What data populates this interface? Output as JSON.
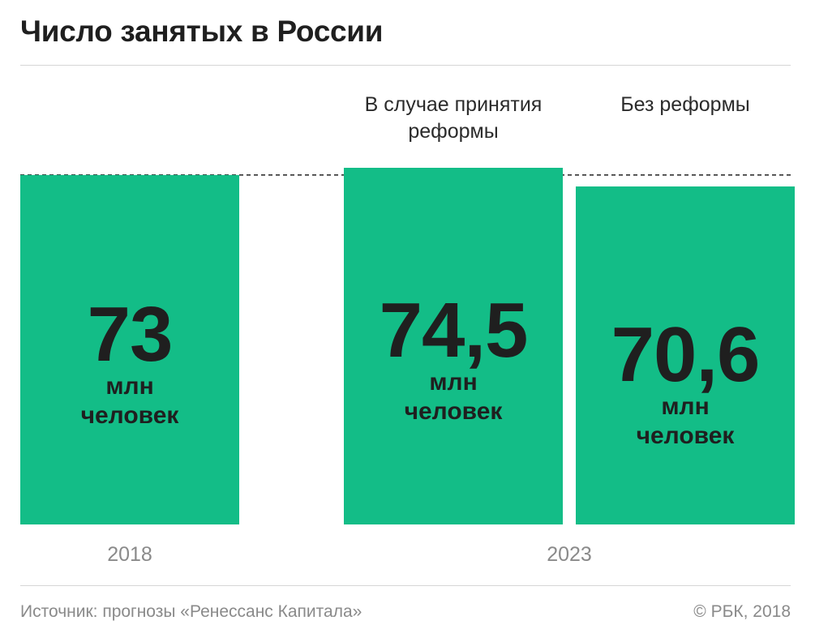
{
  "title": "Число занятых в России",
  "source": "Источник: прогнозы «Ренессанс Капитала»",
  "copyright": "© РБК, 2018",
  "colors": {
    "bar": "#13bd87",
    "reference_line": "#222222",
    "rule": "#d6d6d6"
  },
  "chart_data": {
    "type": "bar",
    "title": "Число занятых в России",
    "unit_line1": "млн",
    "unit_line2": "человек",
    "categories": [
      "2018",
      "В случае принятия реформы",
      "Без реформы"
    ],
    "groups": [
      "2018",
      "2023"
    ],
    "bars": [
      {
        "group": "2018",
        "label": "",
        "value": 73,
        "display": "73"
      },
      {
        "group": "2023",
        "label_line1": "В случае принятия",
        "label_line2": "реформы",
        "value": 74.5,
        "display": "74,5"
      },
      {
        "group": "2023",
        "label": "Без реформы",
        "value": 70.6,
        "display": "70,6"
      }
    ],
    "reference_line": {
      "value": 73,
      "style": "dashed"
    },
    "ylim": [
      0,
      74.5
    ],
    "grid": false,
    "legend": "none"
  }
}
